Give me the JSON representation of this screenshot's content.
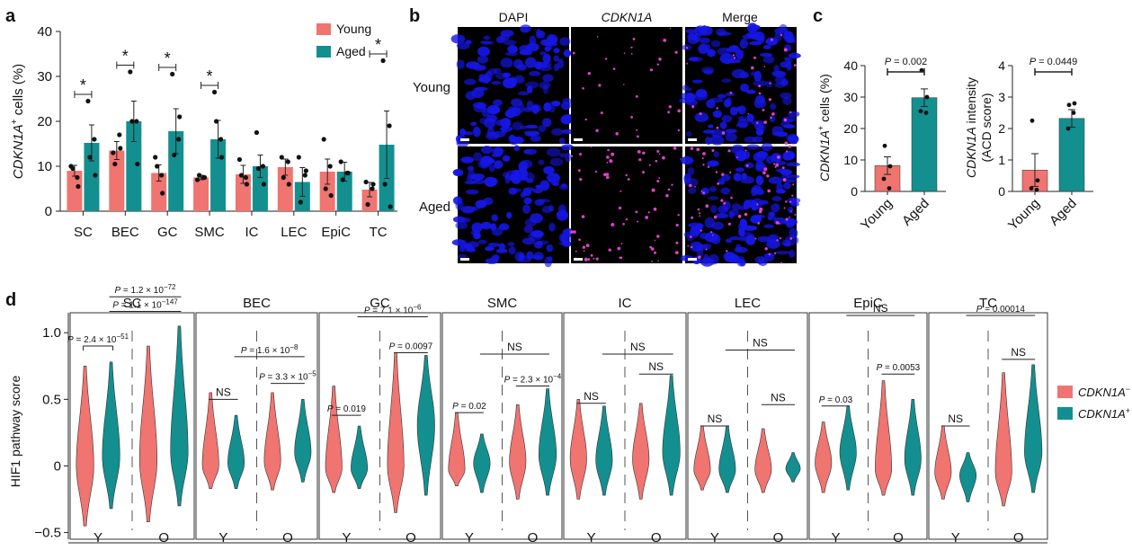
{
  "colors": {
    "young": "#F07470",
    "aged": "#138F90",
    "neg": "#F07470",
    "pos": "#138F90",
    "dapi": "#1616E6",
    "cdkn1a": "#E040C8"
  },
  "panel_a": {
    "letter": "a",
    "ylabel_gene": "CDKN1A",
    "ylabel_suffix": "cells (%)",
    "sup": "+",
    "legend": [
      "Young",
      "Aged"
    ]
  },
  "panel_b": {
    "letter": "b",
    "columns": [
      "DAPI",
      "CDKN1A",
      "Merge"
    ],
    "rows": [
      "Young",
      "Aged"
    ]
  },
  "panel_c": {
    "letter": "c",
    "plot1": {
      "ylabel_gene": "CDKN1A",
      "ylabel_suffix": "cells (%)",
      "p": "P = 0.002"
    },
    "plot2": {
      "ylabel_gene": "CDKN1A",
      "ylabel_suffix": "intensity",
      "ylabel_line2": "(ACD score)",
      "p": "P = 0.0449"
    },
    "categories": [
      "Young",
      "Aged"
    ]
  },
  "panel_d": {
    "letter": "d",
    "ylabel": "HIF1 pathway score",
    "legend": [
      "CDKN1A",
      "CDKN1A"
    ],
    "legend_sups": [
      "−",
      "+"
    ]
  },
  "chart_data": [
    {
      "type": "bar",
      "panel": "a",
      "categories": [
        "SC",
        "BEC",
        "GC",
        "SMC",
        "IC",
        "LEC",
        "EpiC",
        "TC"
      ],
      "series": [
        {
          "name": "Young",
          "values": [
            9.0,
            13.5,
            8.5,
            7.5,
            8.2,
            9.8,
            8.8,
            4.8
          ],
          "errors": [
            1.2,
            2.0,
            1.8,
            0.5,
            2.0,
            1.8,
            2.8,
            1.6
          ],
          "points": [
            [
              10,
              7.5,
              9.5,
              5.5
            ],
            [
              13,
              17,
              10.5,
              14
            ],
            [
              12,
              8,
              10,
              4
            ],
            [
              7,
              7.5,
              8,
              7.5
            ],
            [
              11.5,
              7.5,
              8,
              6
            ],
            [
              12,
              11,
              7.5,
              6
            ],
            [
              16,
              10,
              5,
              3.5
            ],
            [
              6.5,
              5,
              1.5,
              6
            ]
          ]
        },
        {
          "name": "Aged",
          "values": [
            15.2,
            20.0,
            17.8,
            16.0,
            10.0,
            6.5,
            8.8,
            14.8
          ],
          "errors": [
            4.0,
            4.5,
            5.0,
            4.2,
            2.5,
            3.2,
            2.1,
            7.5
          ],
          "points": [
            [
              24.5,
              16,
              12,
              8
            ],
            [
              31,
              20,
              20,
              10.5
            ],
            [
              30.5,
              16,
              12.5,
              21
            ],
            [
              26.5,
              16,
              20,
              12
            ],
            [
              17.5,
              10,
              9.5,
              6
            ],
            [
              12,
              8,
              2,
              9
            ],
            [
              11,
              8.5,
              7,
              8.5
            ],
            [
              33.5,
              19,
              6,
              1
            ]
          ]
        }
      ],
      "significance": [
        "*",
        "*",
        "*",
        "*",
        "",
        "",
        "",
        "*"
      ],
      "ylim": [
        0,
        40
      ],
      "yticks": [
        0,
        10,
        20,
        30,
        40
      ],
      "ylabel": "CDKN1A+ cells (%)",
      "legend_position": "top-right"
    },
    {
      "type": "bar",
      "panel": "c-left",
      "categories": [
        "Young",
        "Aged"
      ],
      "values": [
        8.2,
        29.8
      ],
      "errors": [
        2.8,
        2.8
      ],
      "points": [
        [
          14.5,
          8,
          4,
          1
        ],
        [
          38.5,
          30,
          25.5,
          25
        ]
      ],
      "ylim": [
        0,
        40
      ],
      "yticks": [
        0,
        10,
        20,
        30,
        40
      ],
      "ylabel": "CDKN1A+ cells (%)",
      "annotation": "P = 0.002"
    },
    {
      "type": "bar",
      "panel": "c-right",
      "categories": [
        "Young",
        "Aged"
      ],
      "values": [
        0.68,
        2.32
      ],
      "errors": [
        0.52,
        0.28
      ],
      "points": [
        [
          2.25,
          0.35,
          0.1,
          0.05
        ],
        [
          2.75,
          2.8,
          2.0,
          2.5
        ]
      ],
      "ylim": [
        0,
        4
      ],
      "yticks": [
        0,
        1,
        2,
        3,
        4
      ],
      "ylabel": "CDKN1A intensity (ACD score)",
      "annotation": "P = 0.0449"
    },
    {
      "type": "violin",
      "panel": "d",
      "ylim": [
        -0.55,
        1.15
      ],
      "yticks": [
        "1.0",
        "0.5",
        "0",
        "−0.5"
      ],
      "ytick_values": [
        1.0,
        0.5,
        0,
        -0.5
      ],
      "xticks": [
        "Y",
        "O"
      ],
      "series_names": [
        "CDKN1A−",
        "CDKN1A+"
      ],
      "facets": [
        {
          "title": "SC",
          "violins": [
            {
              "min": -0.45,
              "max": 0.75,
              "peak": 0.0,
              "w": 0.85
            },
            {
              "min": -0.32,
              "max": 0.78,
              "peak": 0.07,
              "w": 0.85
            },
            {
              "min": -0.42,
              "max": 0.9,
              "peak": 0.04,
              "w": 0.85
            },
            {
              "min": -0.3,
              "max": 1.05,
              "peak": 0.1,
              "w": 0.85
            }
          ],
          "brackets": [
            {
              "from": 0,
              "to": 1,
              "level": 0.9,
              "label": "P = 2.4 × 10",
              "exp": "−51",
              "ticks": true
            },
            {
              "from": 1,
              "to": 3,
              "level": 1.16,
              "label": "P = 1.1 × 10",
              "exp": "−147",
              "ticks": false
            },
            {
              "from": 1,
              "to": 3,
              "level": 1.27,
              "label": "P = 1.2 × 10",
              "exp": "−72",
              "ticks": false
            }
          ]
        },
        {
          "title": "BEC",
          "violins": [
            {
              "min": -0.17,
              "max": 0.55,
              "peak": 0.0,
              "w": 0.8
            },
            {
              "min": -0.17,
              "max": 0.38,
              "peak": 0.02,
              "w": 0.8
            },
            {
              "min": -0.18,
              "max": 0.55,
              "peak": 0.03,
              "w": 0.8
            },
            {
              "min": -0.12,
              "max": 0.5,
              "peak": 0.1,
              "w": 0.8
            }
          ],
          "brackets": [
            {
              "from": 0,
              "to": 1,
              "level": 0.5,
              "label": "NS",
              "exp": "",
              "ticks": false
            },
            {
              "from": 2,
              "to": 3,
              "level": 0.62,
              "label": "P = 3.3 × 10",
              "exp": "−5",
              "ticks": false
            },
            {
              "from": 1,
              "to": 3,
              "level": 0.82,
              "label": "P = 1.6 × 10",
              "exp": "−8",
              "ticks": false
            }
          ]
        },
        {
          "title": "GC",
          "violins": [
            {
              "min": -0.2,
              "max": 0.6,
              "peak": -0.02,
              "w": 0.8
            },
            {
              "min": -0.17,
              "max": 0.3,
              "peak": -0.02,
              "w": 0.8
            },
            {
              "min": -0.35,
              "max": 0.85,
              "peak": 0.0,
              "w": 0.8
            },
            {
              "min": -0.22,
              "max": 0.83,
              "peak": 0.3,
              "w": 0.85
            }
          ],
          "brackets": [
            {
              "from": 0,
              "to": 1,
              "level": 0.38,
              "label": "P = 0.019",
              "exp": "",
              "ticks": false
            },
            {
              "from": 2,
              "to": 3,
              "level": 0.85,
              "label": "P = 0.0097",
              "exp": "",
              "ticks": false
            },
            {
              "from": 1,
              "to": 3,
              "level": 1.12,
              "label": "P = 7.1 × 10",
              "exp": "−6",
              "ticks": false
            }
          ]
        },
        {
          "title": "SMC",
          "violins": [
            {
              "min": -0.15,
              "max": 0.4,
              "peak": -0.03,
              "w": 0.8
            },
            {
              "min": -0.2,
              "max": 0.24,
              "peak": 0.02,
              "w": 0.8
            },
            {
              "min": -0.25,
              "max": 0.46,
              "peak": 0.03,
              "w": 0.8
            },
            {
              "min": -0.22,
              "max": 0.58,
              "peak": 0.08,
              "w": 0.85
            }
          ],
          "brackets": [
            {
              "from": 0,
              "to": 1,
              "level": 0.4,
              "label": "P = 0.02",
              "exp": "",
              "ticks": false
            },
            {
              "from": 2,
              "to": 3,
              "level": 0.6,
              "label": "P = 2.3 × 10",
              "exp": "−4",
              "ticks": false
            },
            {
              "from": 1,
              "to": 3,
              "level": 0.84,
              "label": "NS",
              "exp": "",
              "ticks": false
            }
          ]
        },
        {
          "title": "IC",
          "violins": [
            {
              "min": -0.25,
              "max": 0.5,
              "peak": 0.05,
              "w": 0.8
            },
            {
              "min": -0.22,
              "max": 0.45,
              "peak": 0.04,
              "w": 0.8
            },
            {
              "min": -0.25,
              "max": 0.47,
              "peak": 0.05,
              "w": 0.8
            },
            {
              "min": -0.22,
              "max": 0.68,
              "peak": 0.1,
              "w": 0.85
            }
          ],
          "brackets": [
            {
              "from": 0,
              "to": 1,
              "level": 0.47,
              "label": "NS",
              "exp": "",
              "ticks": false
            },
            {
              "from": 2,
              "to": 3,
              "level": 0.69,
              "label": "NS",
              "exp": "",
              "ticks": false
            },
            {
              "from": 1,
              "to": 3,
              "level": 0.84,
              "label": "NS",
              "exp": "",
              "ticks": false
            }
          ]
        },
        {
          "title": "LEC",
          "violins": [
            {
              "min": -0.18,
              "max": 0.3,
              "peak": -0.03,
              "w": 0.8
            },
            {
              "min": -0.2,
              "max": 0.3,
              "peak": -0.03,
              "w": 0.8
            },
            {
              "min": -0.2,
              "max": 0.28,
              "peak": -0.03,
              "w": 0.8
            },
            {
              "min": -0.12,
              "max": 0.1,
              "peak": -0.02,
              "w": 0.7
            }
          ],
          "brackets": [
            {
              "from": 0,
              "to": 1,
              "level": 0.3,
              "label": "NS",
              "exp": "",
              "ticks": false
            },
            {
              "from": 2,
              "to": 3,
              "level": 0.46,
              "label": "NS",
              "exp": "",
              "ticks": false
            },
            {
              "from": 1,
              "to": 3,
              "level": 0.87,
              "label": "NS",
              "exp": "",
              "ticks": false
            }
          ]
        },
        {
          "title": "EpiC",
          "violins": [
            {
              "min": -0.2,
              "max": 0.33,
              "peak": 0.02,
              "w": 0.8
            },
            {
              "min": -0.18,
              "max": 0.45,
              "peak": 0.1,
              "w": 0.8
            },
            {
              "min": -0.22,
              "max": 0.64,
              "peak": -0.03,
              "w": 0.8
            },
            {
              "min": -0.22,
              "max": 0.5,
              "peak": 0.05,
              "w": 0.8
            }
          ],
          "brackets": [
            {
              "from": 0,
              "to": 1,
              "level": 0.45,
              "label": "P = 0.03",
              "exp": "",
              "ticks": false
            },
            {
              "from": 2,
              "to": 3,
              "level": 0.69,
              "label": "P = 0.0053",
              "exp": "",
              "ticks": false
            },
            {
              "from": 1,
              "to": 3,
              "level": 1.13,
              "label": "NS",
              "exp": "",
              "ticks": false
            }
          ]
        },
        {
          "title": "TC",
          "violins": [
            {
              "min": -0.25,
              "max": 0.3,
              "peak": -0.05,
              "w": 0.8
            },
            {
              "min": -0.27,
              "max": 0.1,
              "peak": -0.07,
              "w": 0.8
            },
            {
              "min": -0.3,
              "max": 0.7,
              "peak": -0.05,
              "w": 0.8
            },
            {
              "min": -0.2,
              "max": 0.76,
              "peak": 0.1,
              "w": 0.85
            }
          ],
          "brackets": [
            {
              "from": 0,
              "to": 1,
              "level": 0.3,
              "label": "NS",
              "exp": "",
              "ticks": false
            },
            {
              "from": 2,
              "to": 3,
              "level": 0.8,
              "label": "NS",
              "exp": "",
              "ticks": false
            },
            {
              "from": 1,
              "to": 3,
              "level": 1.13,
              "label": "P = 0.00014",
              "exp": "",
              "ticks": false
            }
          ]
        }
      ]
    }
  ]
}
